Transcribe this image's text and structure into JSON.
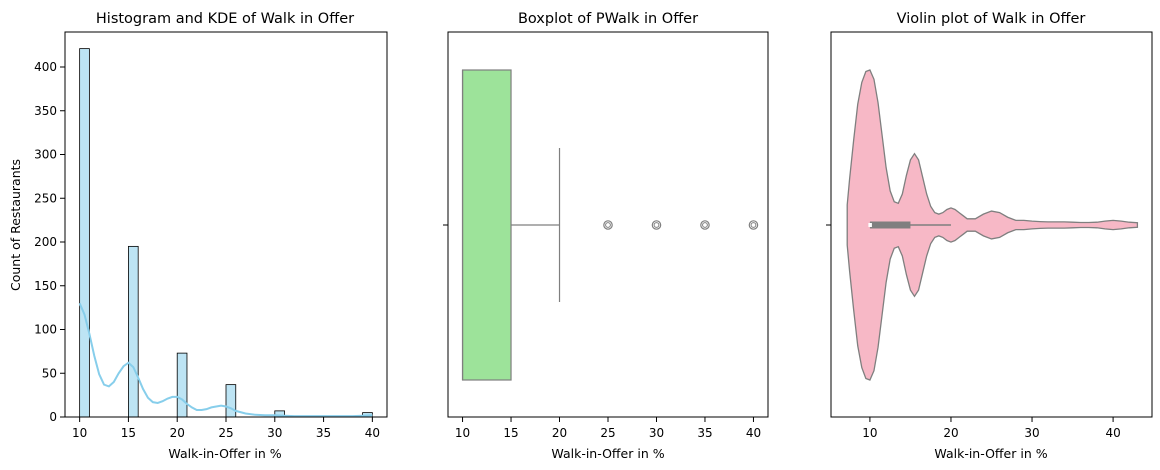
{
  "colors": {
    "hist_fill": "#bde4f4",
    "kde_line": "#87ceeb",
    "box_fill": "#9de39a",
    "violin_fill": "#f7b8c6",
    "outline": "#7f7f7f"
  },
  "chart_data": [
    {
      "type": "bar",
      "subtype": "histogram_with_kde",
      "title": "Histogram and KDE of Walk in Offer",
      "xlabel": "Walk-in-Offer in %",
      "ylabel": "Count of Restaurants",
      "xlim": [
        8.5,
        41.5
      ],
      "ylim": [
        0,
        440
      ],
      "xticks": [
        10,
        15,
        20,
        25,
        30,
        35,
        40
      ],
      "yticks": [
        0,
        50,
        100,
        150,
        200,
        250,
        300,
        350,
        400
      ],
      "bins": [
        {
          "x0": 10,
          "x1": 11,
          "count": 421
        },
        {
          "x0": 15,
          "x1": 16,
          "count": 195
        },
        {
          "x0": 20,
          "x1": 21,
          "count": 73
        },
        {
          "x0": 25,
          "x1": 26,
          "count": 37
        },
        {
          "x0": 30,
          "x1": 31,
          "count": 7
        },
        {
          "x0": 39,
          "x1": 40,
          "count": 5
        }
      ],
      "kde": {
        "x": [
          10,
          10.5,
          11,
          11.5,
          12,
          12.5,
          13,
          13.5,
          14,
          14.5,
          15,
          15.5,
          16,
          16.5,
          17,
          17.5,
          18,
          18.5,
          19,
          19.5,
          20,
          20.5,
          21,
          21.5,
          22,
          22.5,
          23,
          23.5,
          24,
          24.5,
          25,
          25.5,
          26,
          27,
          28,
          29,
          30,
          31,
          32,
          33,
          34,
          35,
          36,
          37,
          38,
          39,
          40
        ],
        "y": [
          130,
          117,
          95,
          70,
          49,
          37,
          35,
          40,
          50,
          58,
          62,
          57,
          45,
          32,
          22,
          17,
          16,
          18,
          21,
          23,
          23,
          20,
          15,
          11,
          8,
          8,
          9,
          11,
          12,
          13,
          12,
          10,
          7,
          4,
          2.5,
          2,
          2,
          1.5,
          1,
          1,
          1,
          1,
          1,
          1,
          1,
          1.5,
          2
        ]
      }
    },
    {
      "type": "boxplot",
      "title": "Boxplot of PWalk in Offer",
      "xlabel": "Walk-in-Offer in %",
      "xlim": [
        8.5,
        41.5
      ],
      "xticks": [
        10,
        15,
        20,
        25,
        30,
        35,
        40
      ],
      "q1": 10,
      "median": 10,
      "q3": 15,
      "whisker_low": 10,
      "whisker_high": 20,
      "outliers": [
        25,
        30,
        35,
        40
      ]
    },
    {
      "type": "violin",
      "title": "Violin plot of Walk in Offer",
      "xlabel": "Walk-in-Offer in %",
      "xlim": [
        5.2,
        44.8
      ],
      "xticks": [
        10,
        20,
        30,
        40
      ],
      "q1": 10,
      "median": 10,
      "q3": 15,
      "whisker_low": 10,
      "whisker_high": 20,
      "density": {
        "x": [
          7.2,
          7.5,
          8,
          8.5,
          9,
          9.5,
          10,
          10.5,
          11,
          11.5,
          12,
          12.5,
          13,
          13.5,
          14,
          14.5,
          15,
          15.5,
          16,
          16.5,
          17,
          17.5,
          18,
          18.5,
          19,
          19.5,
          20,
          20.5,
          21,
          21.5,
          22,
          23,
          24,
          25,
          26,
          27,
          28,
          29,
          30,
          31,
          32,
          33,
          34,
          35,
          36,
          37,
          38,
          39,
          40,
          41,
          42,
          43
        ],
        "w": [
          0.13,
          0.3,
          0.55,
          0.78,
          0.92,
          0.99,
          1.0,
          0.94,
          0.79,
          0.58,
          0.37,
          0.22,
          0.15,
          0.14,
          0.2,
          0.32,
          0.42,
          0.46,
          0.42,
          0.31,
          0.2,
          0.12,
          0.08,
          0.07,
          0.08,
          0.1,
          0.11,
          0.1,
          0.08,
          0.06,
          0.04,
          0.04,
          0.07,
          0.09,
          0.08,
          0.05,
          0.03,
          0.03,
          0.025,
          0.022,
          0.02,
          0.02,
          0.02,
          0.018,
          0.016,
          0.016,
          0.018,
          0.025,
          0.03,
          0.025,
          0.018,
          0.015
        ]
      }
    }
  ]
}
